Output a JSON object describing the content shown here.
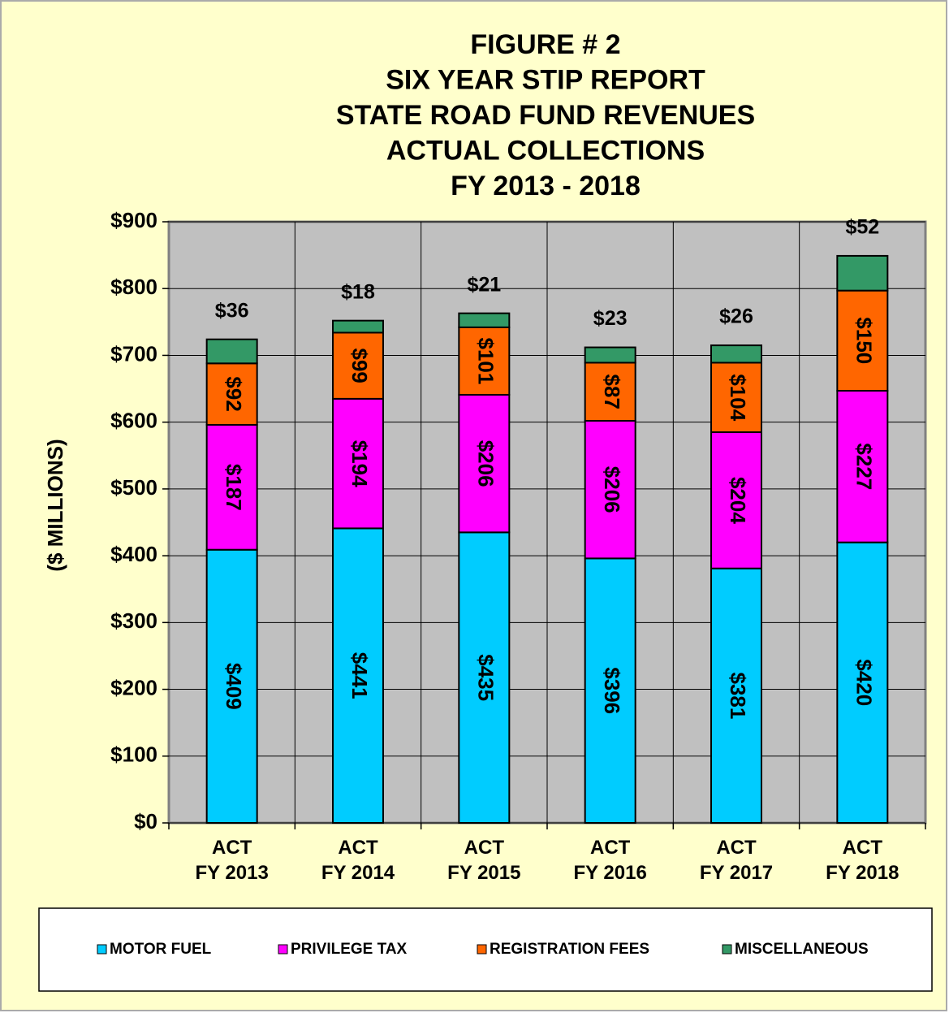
{
  "chart_data": {
    "type": "stacked_bar",
    "title": [
      "FIGURE # 2",
      "SIX YEAR STIP REPORT",
      "STATE ROAD FUND REVENUES",
      "ACTUAL COLLECTIONS",
      "FY 2013 - 2018"
    ],
    "y_label": "($ MILLIONS)",
    "categories": [
      "ACT\nFY 2013",
      "ACT\nFY 2014",
      "ACT\nFY 2015",
      "ACT\nFY 2016",
      "ACT\nFY 2017",
      "ACT\nFY 2018"
    ],
    "series": [
      {
        "name": "MOTOR FUEL",
        "color": "#00ccff",
        "values": [
          409,
          441,
          435,
          396,
          381,
          420
        ],
        "value_labels": [
          "$409",
          "$441",
          "$435",
          "$396",
          "$381",
          "$420"
        ]
      },
      {
        "name": "PRIVILEGE TAX",
        "color": "#ff00ff",
        "values": [
          187,
          194,
          206,
          206,
          204,
          227
        ],
        "value_labels": [
          "$187",
          "$194",
          "$206",
          "$206",
          "$204",
          "$227"
        ]
      },
      {
        "name": "REGISTRATION FEES",
        "color": "#ff6600",
        "values": [
          92,
          99,
          101,
          87,
          104,
          150
        ],
        "value_labels": [
          "$92",
          "$99",
          "$101",
          "$87",
          "$104",
          "$150"
        ]
      },
      {
        "name": "MISCELLANEOUS",
        "color": "#339966",
        "values": [
          36,
          18,
          21,
          23,
          26,
          52
        ],
        "value_labels": [
          "$36",
          "$18",
          "$21",
          "$23",
          "$26",
          "$52"
        ]
      }
    ],
    "ylim": [
      0,
      900
    ],
    "yticks": [
      {
        "value": 0,
        "label": "$0"
      },
      {
        "value": 100,
        "label": "$100"
      },
      {
        "value": 200,
        "label": "$200"
      },
      {
        "value": 300,
        "label": "$300"
      },
      {
        "value": 400,
        "label": "$400"
      },
      {
        "value": 500,
        "label": "$500"
      },
      {
        "value": 600,
        "label": "$600"
      },
      {
        "value": 700,
        "label": "$700"
      },
      {
        "value": 800,
        "label": "$800"
      },
      {
        "value": 900,
        "label": "$900"
      }
    ],
    "grid": true,
    "legend": "bottom"
  }
}
